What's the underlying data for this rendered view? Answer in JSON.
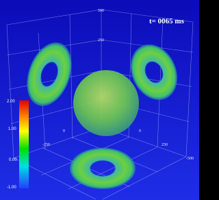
{
  "annotation": "t= 0065 ms",
  "axis_labels": [
    "500",
    "250",
    "-250",
    "0",
    "0",
    "250",
    "-500"
  ],
  "colorbar": {
    "labels": [
      "2.00",
      "1.00",
      "0.00",
      "-1.00"
    ]
  }
}
